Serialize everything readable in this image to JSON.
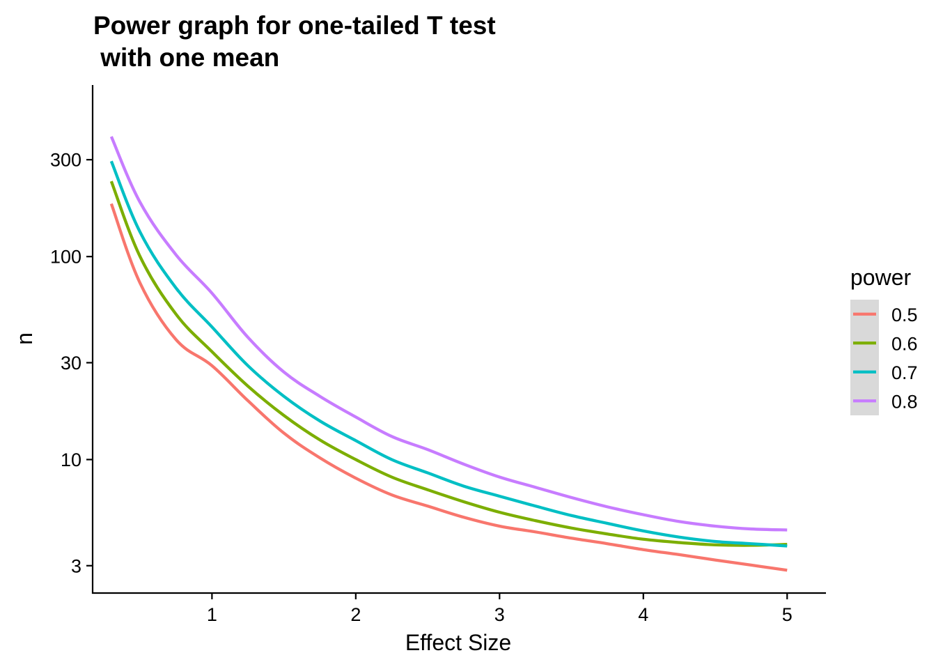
{
  "chart_data": {
    "type": "line",
    "title_lines": [
      "Power graph for one-tailed T test",
      " with one mean"
    ],
    "xlabel": "Effect Size",
    "ylabel": "n",
    "x_scale": "linear",
    "y_scale": "log10",
    "xlim": [
      0.17,
      5.27
    ],
    "ylim": [
      2.2,
      700
    ],
    "x_ticks": [
      1,
      2,
      3,
      4,
      5
    ],
    "x_tick_labels": [
      "1",
      "2",
      "3",
      "4",
      "5"
    ],
    "y_ticks": [
      3,
      10,
      30,
      100,
      300
    ],
    "y_tick_labels": [
      "3",
      "10",
      "30",
      "100",
      "300"
    ],
    "grid": false,
    "legend": {
      "title": "power",
      "position": "right",
      "key_background": "#d9d9d9"
    },
    "x": [
      0.3,
      0.5,
      0.75,
      1.0,
      1.25,
      1.5,
      1.75,
      2.0,
      2.25,
      2.5,
      2.75,
      3.0,
      3.25,
      3.5,
      3.75,
      4.0,
      4.25,
      4.5,
      4.75,
      5.0
    ],
    "series": [
      {
        "name": "0.5",
        "color": "#F8766D",
        "values": [
          182,
          74,
          39,
          29,
          19.5,
          13.5,
          10.2,
          8.1,
          6.7,
          5.9,
          5.2,
          4.7,
          4.4,
          4.1,
          3.85,
          3.6,
          3.4,
          3.2,
          3.02,
          2.85
        ]
      },
      {
        "name": "0.6",
        "color": "#7CAE00",
        "values": [
          235,
          100,
          52,
          34,
          23,
          16.5,
          12.5,
          10.0,
          8.2,
          7.1,
          6.2,
          5.5,
          5.0,
          4.6,
          4.3,
          4.05,
          3.9,
          3.8,
          3.78,
          3.82
        ]
      },
      {
        "name": "0.7",
        "color": "#00BFC4",
        "values": [
          295,
          132,
          70,
          45,
          29,
          20.5,
          15.5,
          12.4,
          10.0,
          8.6,
          7.4,
          6.6,
          5.9,
          5.3,
          4.85,
          4.45,
          4.15,
          3.95,
          3.85,
          3.75
        ]
      },
      {
        "name": "0.8",
        "color": "#C77CFF",
        "values": [
          390,
          185,
          102,
          66,
          40,
          27,
          20.5,
          16.2,
          13.0,
          11.2,
          9.5,
          8.2,
          7.3,
          6.5,
          5.85,
          5.35,
          4.95,
          4.7,
          4.55,
          4.5
        ]
      }
    ]
  }
}
